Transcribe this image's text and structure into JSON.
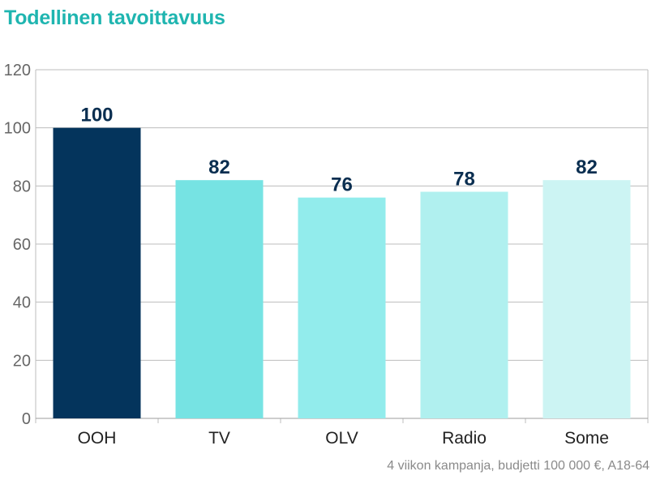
{
  "chart_data": {
    "type": "bar",
    "title": "Todellinen tavoittavuus",
    "categories": [
      "OOH",
      "TV",
      "OLV",
      "Radio",
      "Some"
    ],
    "values": [
      100,
      82,
      76,
      78,
      82
    ],
    "bar_colors": [
      "#04345c",
      "#76e3e3",
      "#92ecec",
      "#b0f0ef",
      "#ccf4f3"
    ],
    "ylim": [
      0,
      120
    ],
    "yticks": [
      0,
      20,
      40,
      60,
      80,
      100,
      120
    ],
    "grid": true,
    "xlabel": "",
    "ylabel": ""
  },
  "footnote": "4 viikon kampanja, budjetti 100 000 €, A18-64"
}
